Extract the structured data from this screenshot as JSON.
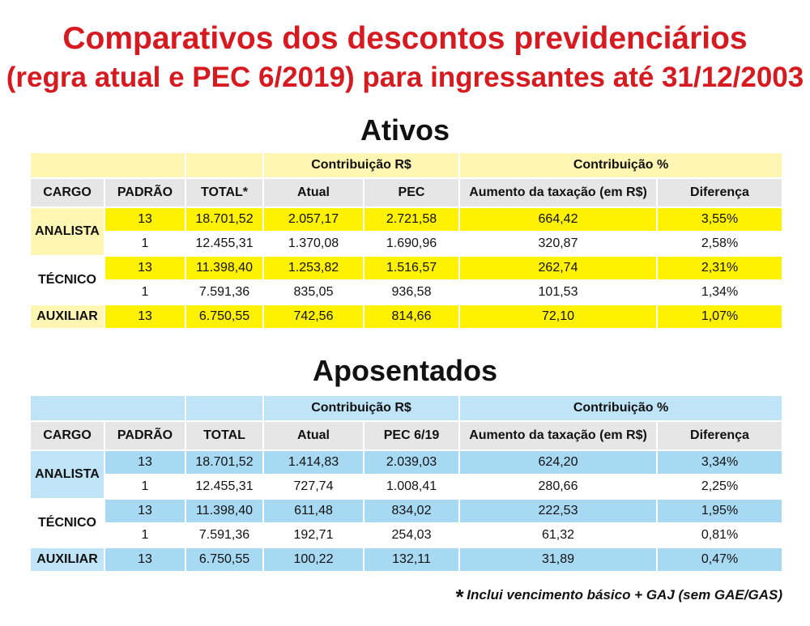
{
  "title": {
    "line1": "Comparativos dos descontos previdenciários",
    "line2": "(regra atual e PEC 6/2019) para ingressantes até 31/12/2003"
  },
  "colors": {
    "title": "#d71920",
    "ativos_highlight": "#fff200",
    "ativos_light": "#fff6b3",
    "aposentados_highlight": "#a7d9f2",
    "aposentados_light": "#bfe4f7",
    "header_gray": "#e6e6e6"
  },
  "tables": [
    {
      "section": "Ativos",
      "group_headers": [
        "Contribuição R$",
        "Contribuição %"
      ],
      "columns": [
        "CARGO",
        "PADRÃO",
        "TOTAL*",
        "Atual",
        "PEC",
        "Aumento da taxação (em R$)",
        "Diferença"
      ],
      "groups": [
        {
          "cargo": "ANALISTA",
          "rows": [
            [
              "13",
              "18.701,52",
              "2.057,17",
              "2.721,58",
              "664,42",
              "3,55%"
            ],
            [
              "1",
              "12.455,31",
              "1.370,08",
              "1.690,96",
              "320,87",
              "2,58%"
            ]
          ]
        },
        {
          "cargo": "TÉCNICO",
          "rows": [
            [
              "13",
              "11.398,40",
              "1.253,82",
              "1.516,57",
              "262,74",
              "2,31%"
            ],
            [
              "1",
              "7.591,36",
              "835,05",
              "936,58",
              "101,53",
              "1,34%"
            ]
          ]
        },
        {
          "cargo": "AUXILIAR",
          "rows": [
            [
              "13",
              "6.750,55",
              "742,56",
              "814,66",
              "72,10",
              "1,07%"
            ]
          ]
        }
      ]
    },
    {
      "section": "Aposentados",
      "group_headers": [
        "Contribuição R$",
        "Contribuição %"
      ],
      "columns": [
        "CARGO",
        "PADRÃO",
        "TOTAL",
        "Atual",
        "PEC 6/19",
        "Aumento da taxação (em R$)",
        "Diferença"
      ],
      "groups": [
        {
          "cargo": "ANALISTA",
          "rows": [
            [
              "13",
              "18.701,52",
              "1.414,83",
              "2.039,03",
              "624,20",
              "3,34%"
            ],
            [
              "1",
              "12.455,31",
              "727,74",
              "1.008,41",
              "280,66",
              "2,25%"
            ]
          ]
        },
        {
          "cargo": "TÉCNICO",
          "rows": [
            [
              "13",
              "11.398,40",
              "611,48",
              "834,02",
              "222,53",
              "1,95%"
            ],
            [
              "1",
              "7.591,36",
              "192,71",
              "254,03",
              "61,32",
              "0,81%"
            ]
          ]
        },
        {
          "cargo": "AUXILIAR",
          "rows": [
            [
              "13",
              "6.750,55",
              "100,22",
              "132,11",
              "31,89",
              "0,47%"
            ]
          ]
        }
      ]
    }
  ],
  "footnote": {
    "asterisk": "*",
    "text": "Inclui vencimento básico + GAJ (sem GAE/GAS)"
  }
}
